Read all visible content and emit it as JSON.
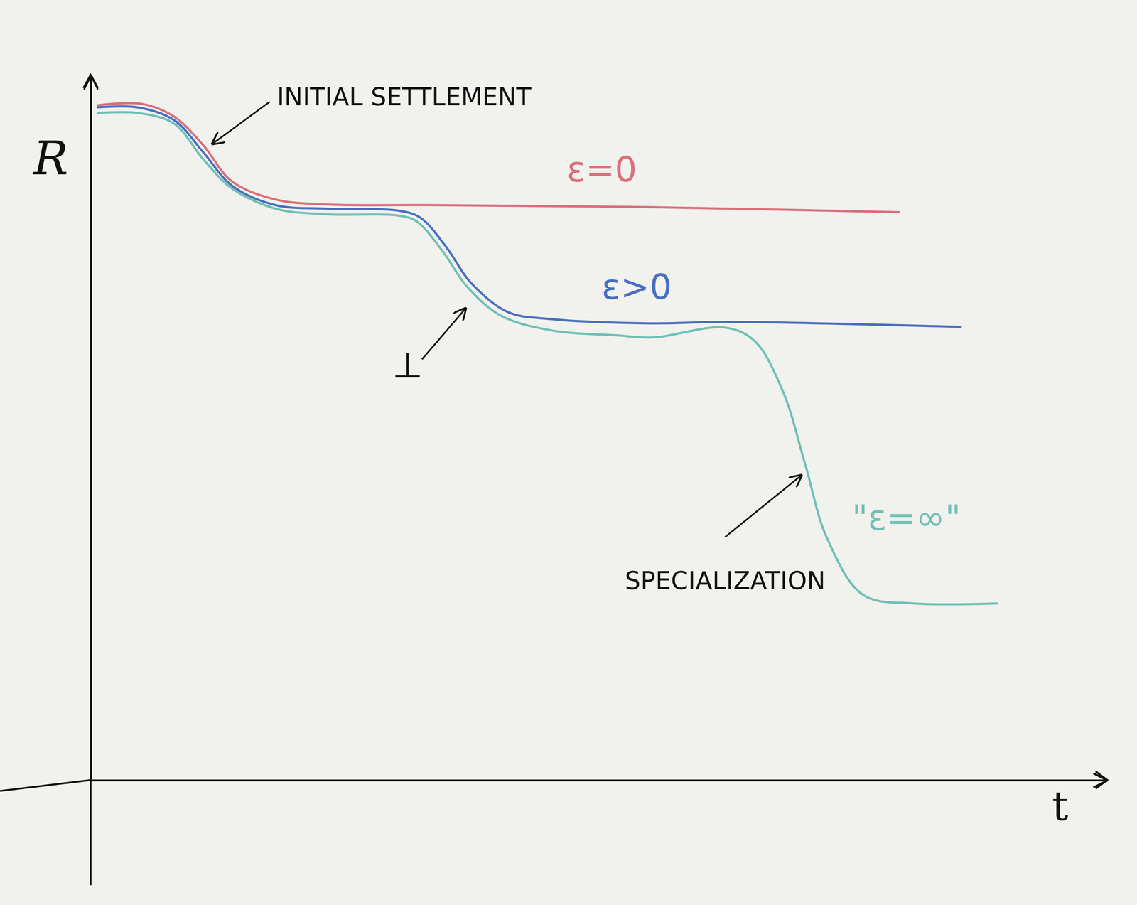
{
  "chart_data": {
    "type": "line",
    "x_label": "t",
    "y_label": "R",
    "xlim": [
      0,
      100
    ],
    "ylim": [
      0,
      100
    ],
    "tick_labels": false,
    "series": [
      {
        "name": "ε=0",
        "color": "#d9707a",
        "x": [
          0.7,
          5,
          8.2,
          11.1,
          13.9,
          18.2,
          23.2,
          33.9,
          55.4,
          79.6
        ],
        "values": [
          95.9,
          96.1,
          94.3,
          90.2,
          85.1,
          82.5,
          81.8,
          81.7,
          81.4,
          80.7
        ]
      },
      {
        "name": "ε>0",
        "color": "#4a6fc0",
        "x": [
          0.7,
          4.6,
          8.2,
          11.1,
          13.9,
          18.2,
          23.2,
          30.4,
          32.5,
          35,
          37.5,
          41.1,
          45.4,
          55.4,
          62.5,
          85.7
        ],
        "values": [
          95.6,
          95.6,
          93.8,
          89.2,
          84.5,
          81.7,
          81.2,
          80.9,
          79.9,
          75.8,
          70.6,
          66.5,
          65.5,
          64.9,
          65.1,
          64.4
        ]
      },
      {
        "name": "\"ε=∞\"",
        "color": "#6fc0b5",
        "x": [
          0.7,
          4.6,
          8.2,
          11.1,
          13.9,
          18.2,
          23.2,
          30.4,
          32.1,
          34.6,
          37.1,
          40.4,
          45.4,
          51.8,
          55.4,
          62.5,
          65.4,
          68.2,
          70.4,
          72.5,
          76.1,
          81.1,
          89.3
        ],
        "values": [
          94.8,
          94.8,
          93.3,
          88.2,
          84.1,
          81.2,
          80.4,
          80.2,
          79.4,
          75.3,
          70.1,
          66,
          63.9,
          63.2,
          62.9,
          64.3,
          62.4,
          55.2,
          44.8,
          34.5,
          26.3,
          25.1,
          25.1
        ]
      }
    ],
    "annotations": [
      "INITIAL SETTLEMENT",
      "⊥",
      "SPECIALIZATION"
    ]
  }
}
